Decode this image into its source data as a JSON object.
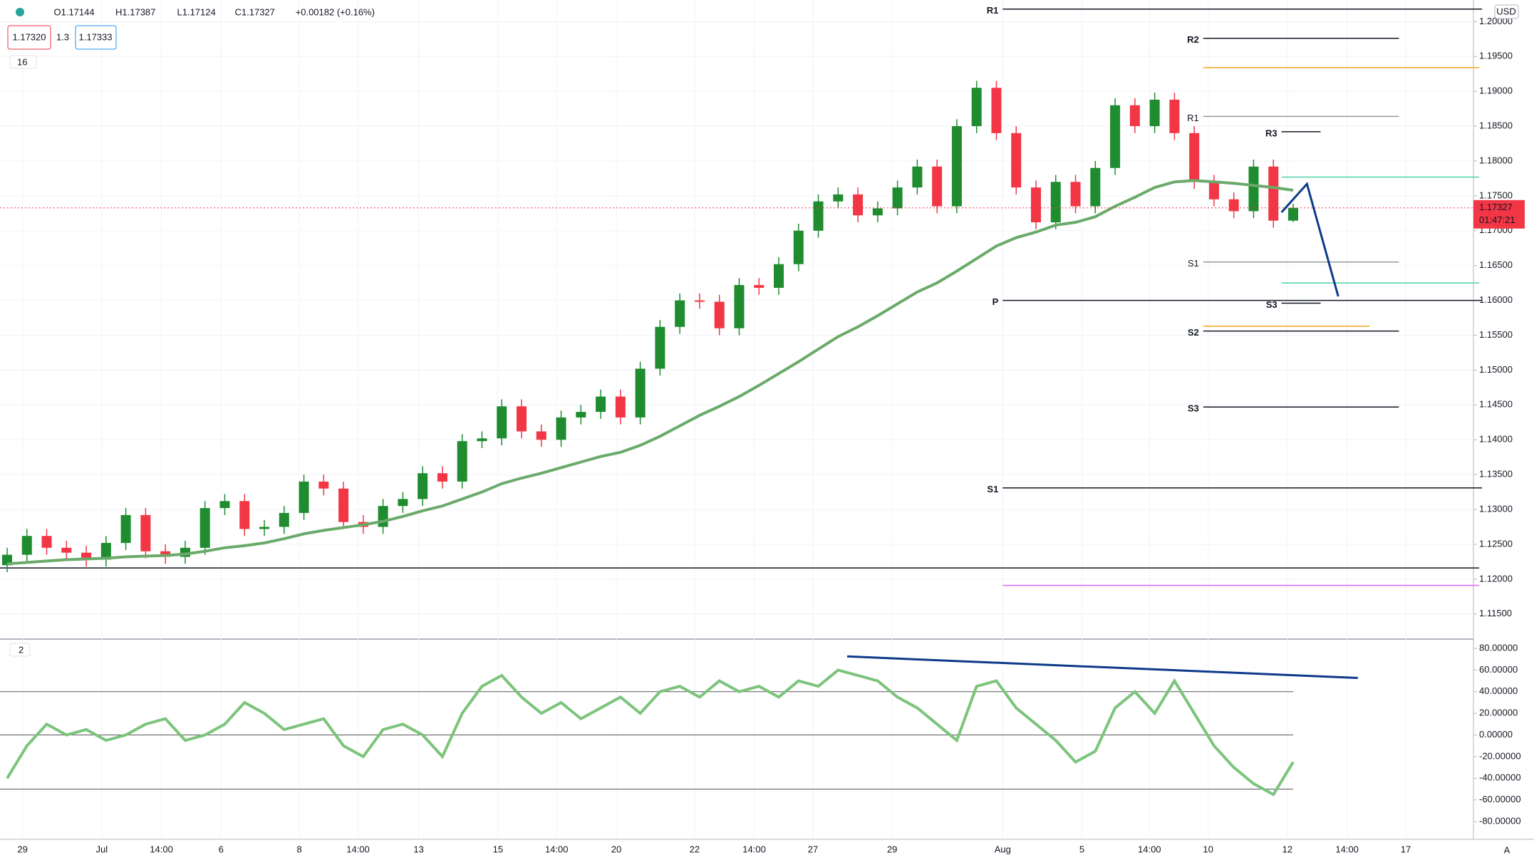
{
  "header": {
    "open": "O1.17144",
    "high": "H1.17387",
    "low": "L1.17124",
    "close": "C1.17327",
    "change": "+0.00182 (+0.16%)",
    "bid": "1.17320",
    "spread": "1.3",
    "ask": "1.17333",
    "main_pane": "16",
    "osc_pane": "2",
    "currency": "USD",
    "auto": "A",
    "countdown": "01:47:21"
  },
  "chart_data": [
    {
      "type": "candlestick",
      "open": [
        1.122,
        1.1235,
        1.1262,
        1.1245,
        1.1238,
        1.1228,
        1.1252,
        1.1292,
        1.124,
        1.1232,
        1.1245,
        1.1302,
        1.1312,
        1.1272,
        1.1275,
        1.1295,
        1.134,
        1.133,
        1.1282,
        1.1275,
        1.1305,
        1.1315,
        1.1352,
        1.134,
        1.1398,
        1.1402,
        1.1448,
        1.1412,
        1.14,
        1.1432,
        1.144,
        1.1462,
        1.1432,
        1.1502,
        1.1562,
        1.16,
        1.1598,
        1.156,
        1.1622,
        1.1618,
        1.1652,
        1.17,
        1.1742,
        1.1752,
        1.1722,
        1.1732,
        1.1762,
        1.1792,
        1.1735,
        1.185,
        1.1905,
        1.184,
        1.1762,
        1.1712,
        1.177,
        1.1735,
        1.179,
        1.188,
        1.185,
        1.1888,
        1.184,
        1.177,
        1.1745,
        1.1728,
        1.1792,
        1.17144
      ],
      "high": [
        1.1245,
        1.1272,
        1.1272,
        1.1255,
        1.1248,
        1.1262,
        1.1302,
        1.1302,
        1.125,
        1.1255,
        1.1312,
        1.1322,
        1.1322,
        1.1285,
        1.1305,
        1.135,
        1.135,
        1.134,
        1.1292,
        1.1315,
        1.1325,
        1.1362,
        1.1362,
        1.1408,
        1.1412,
        1.1458,
        1.1458,
        1.1422,
        1.1442,
        1.145,
        1.1472,
        1.1472,
        1.1512,
        1.1572,
        1.161,
        1.161,
        1.1608,
        1.1632,
        1.1632,
        1.1662,
        1.171,
        1.1752,
        1.1762,
        1.1762,
        1.1742,
        1.1772,
        1.1802,
        1.1802,
        1.186,
        1.1915,
        1.1915,
        1.185,
        1.1772,
        1.178,
        1.178,
        1.18,
        1.189,
        1.189,
        1.1898,
        1.1898,
        1.185,
        1.178,
        1.1755,
        1.1802,
        1.1802,
        1.17387
      ],
      "low": [
        1.121,
        1.1225,
        1.1235,
        1.1228,
        1.1218,
        1.1218,
        1.1242,
        1.123,
        1.1222,
        1.1222,
        1.1235,
        1.1292,
        1.1262,
        1.1262,
        1.1265,
        1.1285,
        1.132,
        1.1272,
        1.1265,
        1.1265,
        1.1295,
        1.1305,
        1.133,
        1.133,
        1.1388,
        1.1392,
        1.1402,
        1.139,
        1.139,
        1.1422,
        1.143,
        1.1422,
        1.1422,
        1.1492,
        1.1552,
        1.1588,
        1.155,
        1.155,
        1.1608,
        1.1608,
        1.1642,
        1.169,
        1.1732,
        1.1712,
        1.1712,
        1.1722,
        1.1752,
        1.1725,
        1.1725,
        1.184,
        1.183,
        1.1752,
        1.1702,
        1.1702,
        1.1725,
        1.1725,
        1.178,
        1.184,
        1.184,
        1.183,
        1.176,
        1.1735,
        1.1718,
        1.1718,
        1.17044,
        1.17124
      ],
      "close": [
        1.1235,
        1.1262,
        1.1245,
        1.1238,
        1.1228,
        1.1252,
        1.1292,
        1.124,
        1.1232,
        1.1245,
        1.1302,
        1.1312,
        1.1272,
        1.1275,
        1.1295,
        1.134,
        1.133,
        1.1282,
        1.1275,
        1.1305,
        1.1315,
        1.1352,
        1.134,
        1.1398,
        1.1402,
        1.1448,
        1.1412,
        1.14,
        1.1432,
        1.144,
        1.1462,
        1.1432,
        1.1502,
        1.1562,
        1.16,
        1.1598,
        1.156,
        1.1622,
        1.1618,
        1.1652,
        1.17,
        1.1742,
        1.1752,
        1.1722,
        1.1732,
        1.1762,
        1.1792,
        1.1735,
        1.185,
        1.1905,
        1.184,
        1.1762,
        1.1712,
        1.177,
        1.1735,
        1.179,
        1.188,
        1.185,
        1.1888,
        1.184,
        1.177,
        1.1745,
        1.1728,
        1.1792,
        1.17144,
        1.17327
      ],
      "up_color": "#1e8c2f",
      "down_color": "#f23645",
      "ma": {
        "color": "#6aaa6a",
        "values": [
          1.1222,
          1.1224,
          1.1226,
          1.1228,
          1.1229,
          1.123,
          1.1232,
          1.1233,
          1.1234,
          1.1236,
          1.124,
          1.1245,
          1.1248,
          1.1252,
          1.1258,
          1.1265,
          1.127,
          1.1274,
          1.1278,
          1.1283,
          1.129,
          1.1298,
          1.1305,
          1.1315,
          1.1325,
          1.1337,
          1.1345,
          1.1352,
          1.136,
          1.1368,
          1.1376,
          1.1382,
          1.1392,
          1.1405,
          1.142,
          1.1435,
          1.1448,
          1.1462,
          1.1478,
          1.1495,
          1.1512,
          1.153,
          1.1548,
          1.1562,
          1.1578,
          1.1595,
          1.1612,
          1.1625,
          1.1642,
          1.166,
          1.1678,
          1.169,
          1.1698,
          1.1708,
          1.1712,
          1.172,
          1.1735,
          1.1748,
          1.1762,
          1.177,
          1.1772,
          1.177,
          1.1768,
          1.1765,
          1.1762,
          1.1758
        ]
      },
      "ylim": [
        1.1116,
        1.2031
      ],
      "yticks": [
        {
          "value": 1.115,
          "label": "1.11500"
        },
        {
          "value": 1.12,
          "label": "1.12000"
        },
        {
          "value": 1.125,
          "label": "1.12500"
        },
        {
          "value": 1.13,
          "label": "1.13000"
        },
        {
          "value": 1.135,
          "label": "1.13500"
        },
        {
          "value": 1.14,
          "label": "1.14000"
        },
        {
          "value": 1.145,
          "label": "1.14500"
        },
        {
          "value": 1.15,
          "label": "1.15000"
        },
        {
          "value": 1.155,
          "label": "1.15500"
        },
        {
          "value": 1.16,
          "label": "1.16000"
        },
        {
          "value": 1.165,
          "label": "1.16500"
        },
        {
          "value": 1.17,
          "label": "1.17000"
        },
        {
          "value": 1.175,
          "label": "1.17500"
        },
        {
          "value": 1.18,
          "label": "1.18000"
        },
        {
          "value": 1.185,
          "label": "1.18500"
        },
        {
          "value": 1.19,
          "label": "1.19000"
        },
        {
          "value": 1.195,
          "label": "1.19500"
        },
        {
          "value": 1.2,
          "label": "1.20000"
        }
      ],
      "grid": true,
      "x_labels": [
        "29",
        "Jul",
        "14:00",
        "6",
        "8",
        "14:00",
        "13",
        "15",
        "14:00",
        "20",
        "22",
        "14:00",
        "27",
        "29",
        "Aug",
        "5",
        "14:00",
        "10",
        "12",
        "14:00",
        "17"
      ],
      "pivots": [
        {
          "label": "R1",
          "value": 1.2018
        },
        {
          "label": "R2",
          "value": 1.1976
        },
        {
          "label": "R1",
          "value": 1.1864
        },
        {
          "label": "R3",
          "value": 1.1842
        },
        {
          "label": "S1",
          "value": 1.1655
        },
        {
          "label": "P",
          "value": 1.16
        },
        {
          "label": "S3",
          "value": 1.1596
        },
        {
          "label": "S2",
          "value": 1.1556
        },
        {
          "label": "S3",
          "value": 1.1447
        },
        {
          "label": "S1",
          "value": 1.1331
        }
      ],
      "levels": [
        {
          "value": 1.1934,
          "color": "#f5a623"
        },
        {
          "value": 1.1777,
          "color": "#4dd0a8"
        },
        {
          "value": 1.1625,
          "color": "#4dd0a8"
        },
        {
          "value": 1.1563,
          "color": "#f5a623"
        },
        {
          "value": 1.1216,
          "color": "#131722"
        },
        {
          "value": 1.1191,
          "color": "#e066ff"
        }
      ]
    },
    {
      "type": "line",
      "series": [
        {
          "color": "#7cc47c",
          "values": [
            -40,
            -10,
            10,
            0,
            5,
            -5,
            0,
            10,
            15,
            -5,
            0,
            10,
            30,
            20,
            5,
            10,
            15,
            -10,
            -20,
            5,
            10,
            0,
            -20,
            20,
            45,
            55,
            35,
            20,
            30,
            15,
            25,
            35,
            20,
            40,
            45,
            35,
            50,
            40,
            45,
            35,
            50,
            45,
            60,
            55,
            50,
            35,
            25,
            10,
            -5,
            45,
            50,
            25,
            10,
            -5,
            -25,
            -15,
            25,
            40,
            20,
            50,
            20,
            -10,
            -30,
            -45,
            -55,
            -25
          ]
        }
      ],
      "ylim": [
        -93.8,
        86.6
      ],
      "yticks": [
        {
          "value": 80,
          "label": "80.00000"
        },
        {
          "value": 60,
          "label": "60.00000"
        },
        {
          "value": 40,
          "label": "40.00000"
        },
        {
          "value": 20,
          "label": "20.00000"
        },
        {
          "value": 0,
          "label": "0.00000"
        },
        {
          "value": -20,
          "label": "-20.00000"
        },
        {
          "value": -40,
          "label": "-40.00000"
        },
        {
          "value": -60,
          "label": "-60.00000"
        },
        {
          "value": -80,
          "label": "-80.00000"
        }
      ],
      "levels": [
        40,
        0,
        -50
      ]
    }
  ]
}
